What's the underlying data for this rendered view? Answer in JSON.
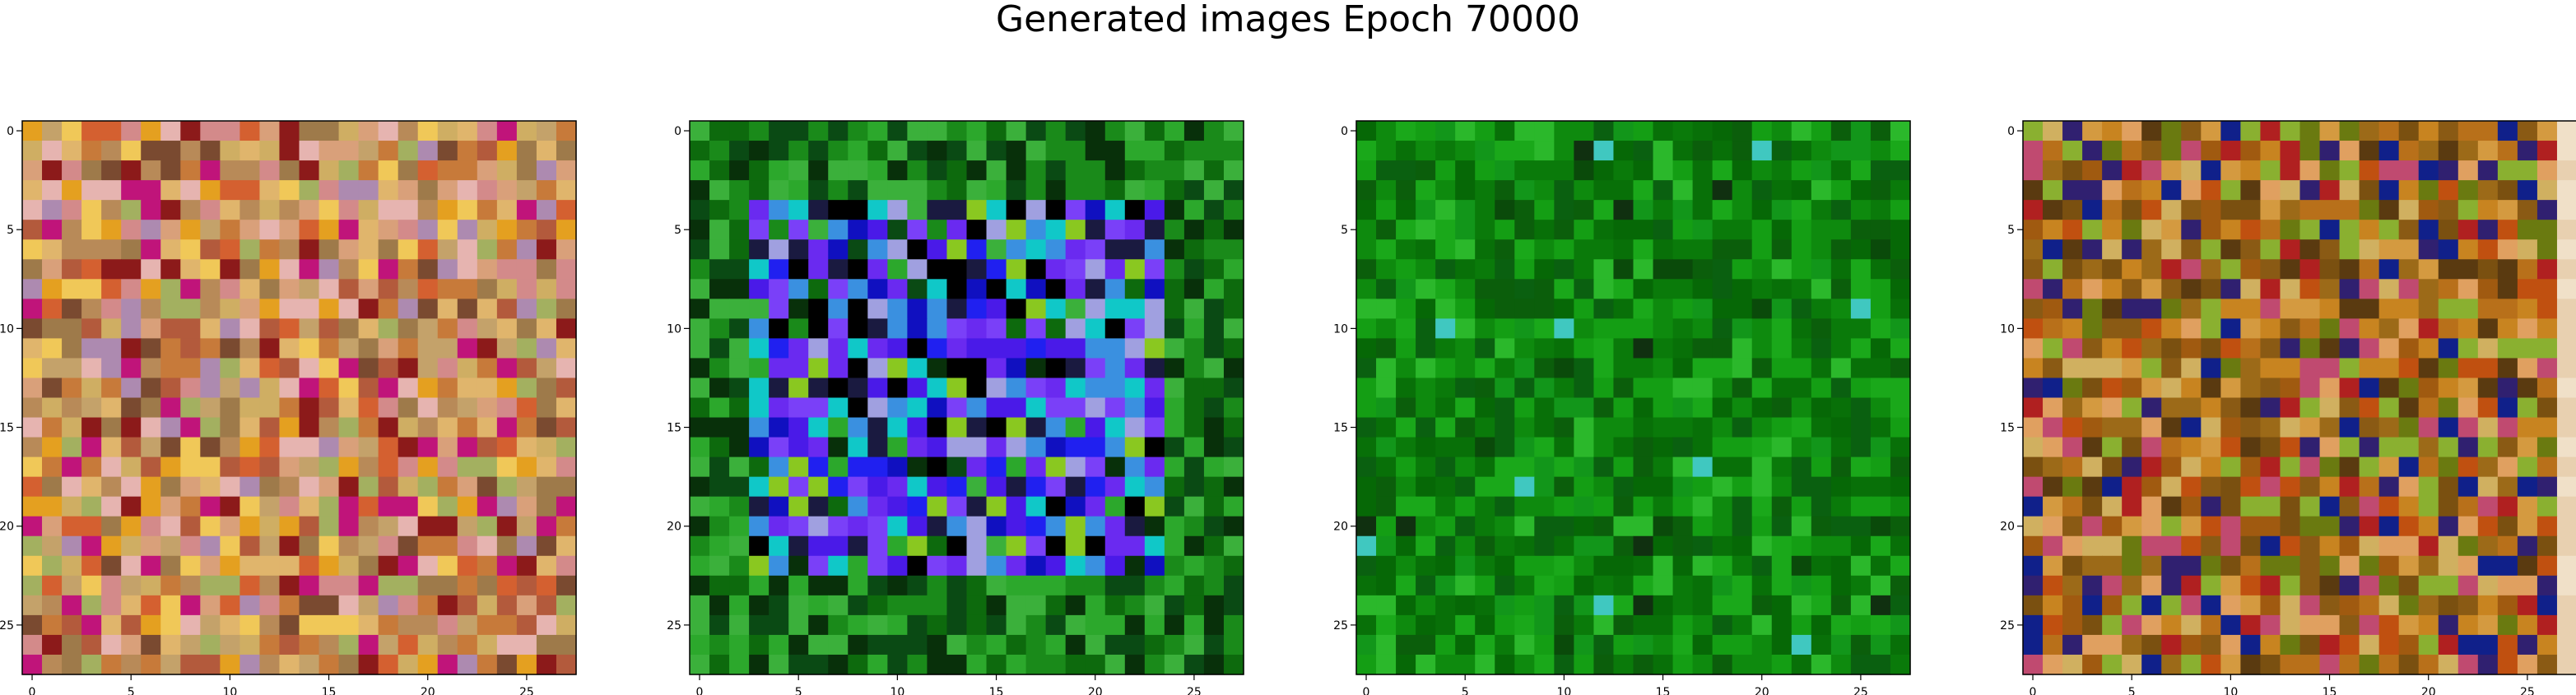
{
  "title": "Generated images Epoch 70000",
  "chart_data": [
    {
      "type": "heatmap",
      "name": "generated-image-1",
      "xticks": [
        "0",
        "5",
        "10",
        "15",
        "20",
        "25"
      ],
      "yticks": [
        "0",
        "5",
        "10",
        "15",
        "20",
        "25"
      ],
      "grid": false,
      "size": [
        28,
        28
      ],
      "palette": [
        "#c4a26a",
        "#cfae63",
        "#b88a58",
        "#d9a07a",
        "#9e7a4a",
        "#e0b56c",
        "#c77a3a",
        "#b35a3c",
        "#d38a8a",
        "#e6b4b0",
        "#a3b060",
        "#8c1a1a",
        "#c0147a",
        "#e4a020",
        "#7a4a30",
        "#d46030",
        "#ad8ab0",
        "#f0c858"
      ],
      "description_colors": "multicolor orange/tan noise"
    },
    {
      "type": "heatmap",
      "name": "generated-image-2",
      "xticks": [
        "0",
        "5",
        "10",
        "15",
        "20",
        "25"
      ],
      "yticks": [
        "0",
        "5",
        "10",
        "15",
        "20",
        "25"
      ],
      "grid": false,
      "size": [
        28,
        28
      ],
      "palette": [
        "#1a8a1a",
        "#0d6a0d",
        "#2ca82c",
        "#0a4a14",
        "#08300a",
        "#3bb03b",
        "#2020f0",
        "#4a1ae8",
        "#6a2af0",
        "#1010c0",
        "#7a40f8",
        "#3a90e0",
        "#a0a0e0",
        "#10c8c8",
        "#8ac820",
        "#000000",
        "#1a1a40"
      ],
      "description_colors": "green border with blue/purple center"
    },
    {
      "type": "heatmap",
      "name": "generated-image-3",
      "xticks": [
        "0",
        "5",
        "10",
        "15",
        "20",
        "25"
      ],
      "yticks": [
        "0",
        "5",
        "10",
        "15",
        "20",
        "25"
      ],
      "grid": false,
      "size": [
        28,
        28
      ],
      "palette": [
        "#0a7a0a",
        "#0e8a0e",
        "#087008",
        "#12961a",
        "#0a6010",
        "#149e14",
        "#066806",
        "#1aa81a",
        "#0b5e0b",
        "#2bb82b",
        "#0a4a0a",
        "#40c8c0",
        "#103010"
      ],
      "description_colors": "mostly green"
    },
    {
      "type": "heatmap",
      "name": "generated-image-4",
      "xticks": [
        "0",
        "5",
        "10",
        "15",
        "20",
        "25"
      ],
      "yticks": [
        "0",
        "5",
        "10",
        "15",
        "20",
        "25"
      ],
      "grid": false,
      "size": [
        28,
        28
      ],
      "palette": [
        "#b8701a",
        "#a05a10",
        "#c88420",
        "#8a5a14",
        "#d49a40",
        "#9c6a18",
        "#7a5010",
        "#c05010",
        "#b02020",
        "#6a7a10",
        "#302070",
        "#10208a",
        "#c04a70",
        "#e0a060",
        "#5a3a10",
        "#d0b060",
        "#8ab030"
      ],
      "description_colors": "orange/brown noise with pale right column"
    }
  ]
}
